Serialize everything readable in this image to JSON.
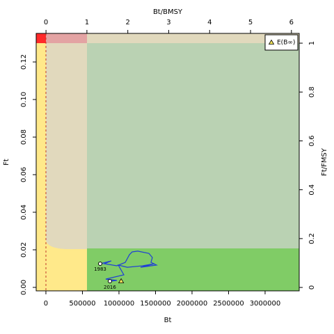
{
  "chart_data": {
    "type": "scatter",
    "x_label": "Bt",
    "y_label": "Ft",
    "x2_label": "Bt/BMSY",
    "y2_label": "Ft/FMSY",
    "xlim": [
      -133000,
      3467000
    ],
    "xticks": [
      0,
      500000,
      1000000,
      1500000,
      2000000,
      2500000,
      3000000
    ],
    "ylim": [
      -0.00185,
      0.1352
    ],
    "yticks": [
      {
        "value": 0,
        "label": "0.00"
      },
      0.02,
      0.04,
      0.06,
      0.08,
      {
        "value": 0.1,
        "label": "0.10"
      },
      0.12
    ],
    "x2lim": [
      -0.24,
      6.19
    ],
    "x2ticks": [
      0,
      1,
      2,
      3,
      4,
      5,
      6
    ],
    "y2lim": [
      -0.014,
      1.04
    ],
    "y2ticks": [
      0,
      0.2,
      0.4,
      0.6,
      0.8,
      1
    ],
    "series": [
      {
        "name": "trajectory",
        "color": "#1f3fd6",
        "x": [
          743000,
          895000,
          800000,
          971000,
          1086000,
          1143000,
          1181000,
          1257000,
          1410000,
          1457000,
          1438000,
          1514000,
          1295000,
          1486000,
          1324000,
          1114000,
          990000,
          1067000,
          819000,
          971000,
          876000
        ],
        "y": [
          0.0126,
          0.0141,
          0.0126,
          0.0115,
          0.0133,
          0.0174,
          0.0189,
          0.0193,
          0.0181,
          0.0159,
          0.0133,
          0.0119,
          0.0107,
          0.0126,
          0.0115,
          0.0107,
          0.0119,
          0.0067,
          0.0044,
          0.0037,
          0.0033
        ]
      }
    ],
    "start_label": "1983",
    "end_label": "2016",
    "equilibrium": {
      "name": "E(B∞)",
      "color": "#f2e35b",
      "x": 1030000,
      "y": 0.0033
    }
  }
}
